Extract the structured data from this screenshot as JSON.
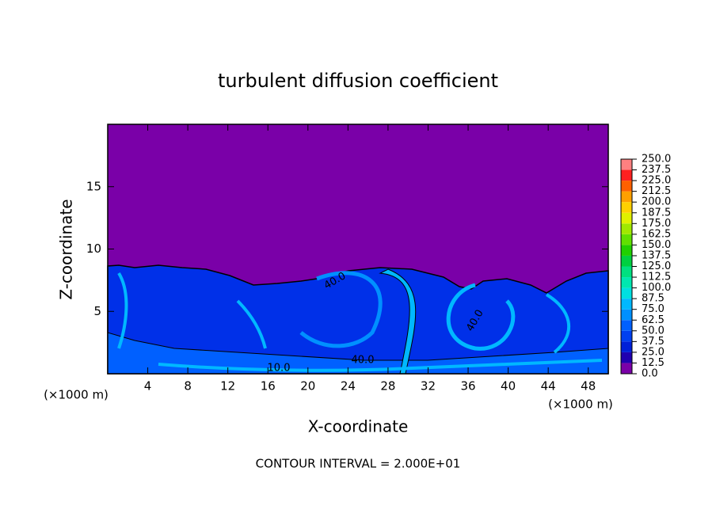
{
  "chart_data": {
    "type": "contour",
    "title": "turbulent diffusion coefficient",
    "xlabel": "X-coordinate",
    "ylabel": "Z-coordinate",
    "x_unit": "(×1000 m)",
    "footer": "CONTOUR INTERVAL = 2.000E+01",
    "xlim": [
      0,
      50
    ],
    "xticks": [
      4,
      8,
      12,
      16,
      20,
      24,
      28,
      32,
      36,
      40,
      44,
      48
    ],
    "ylim": [
      0,
      20
    ],
    "yticks": [
      5,
      10,
      15
    ],
    "annotations": [
      "40.0",
      "40.0",
      "40.0",
      "10.0"
    ],
    "colorbar": {
      "levels": [
        {
          "value": 0,
          "label": "0.0"
        },
        {
          "value": 12.5,
          "label": "12.5"
        },
        {
          "value": 25,
          "label": "25.0"
        },
        {
          "value": 37.5,
          "label": "37.5"
        },
        {
          "value": 50,
          "label": "50.0"
        },
        {
          "value": 62.5,
          "label": "62.5"
        },
        {
          "value": 75,
          "label": "75.0"
        },
        {
          "value": 87.5,
          "label": "87.5"
        },
        {
          "value": 100,
          "label": "100.0"
        },
        {
          "value": 112.5,
          "label": "112.5"
        },
        {
          "value": 125,
          "label": "125.0"
        },
        {
          "value": 137.5,
          "label": "137.5"
        },
        {
          "value": 150,
          "label": "150.0"
        },
        {
          "value": 162.5,
          "label": "162.5"
        },
        {
          "value": 175,
          "label": "175.0"
        },
        {
          "value": 187.5,
          "label": "187.5"
        },
        {
          "value": 200,
          "label": "200.0"
        },
        {
          "value": 212.5,
          "label": "212.5"
        },
        {
          "value": 225,
          "label": "225.0"
        },
        {
          "value": 237.5,
          "label": "237.5"
        },
        {
          "value": 250,
          "label": "250.0"
        }
      ],
      "colors": [
        "#7a00a8",
        "#2000b0",
        "#0020d8",
        "#0040f0",
        "#0060ff",
        "#0090ff",
        "#00b8ff",
        "#00e0e0",
        "#00e8b0",
        "#00e080",
        "#00d040",
        "#20d000",
        "#60e000",
        "#a0e800",
        "#e0f000",
        "#ffd000",
        "#ffa000",
        "#ff6000",
        "#ff2020",
        "#ff8080"
      ]
    }
  }
}
